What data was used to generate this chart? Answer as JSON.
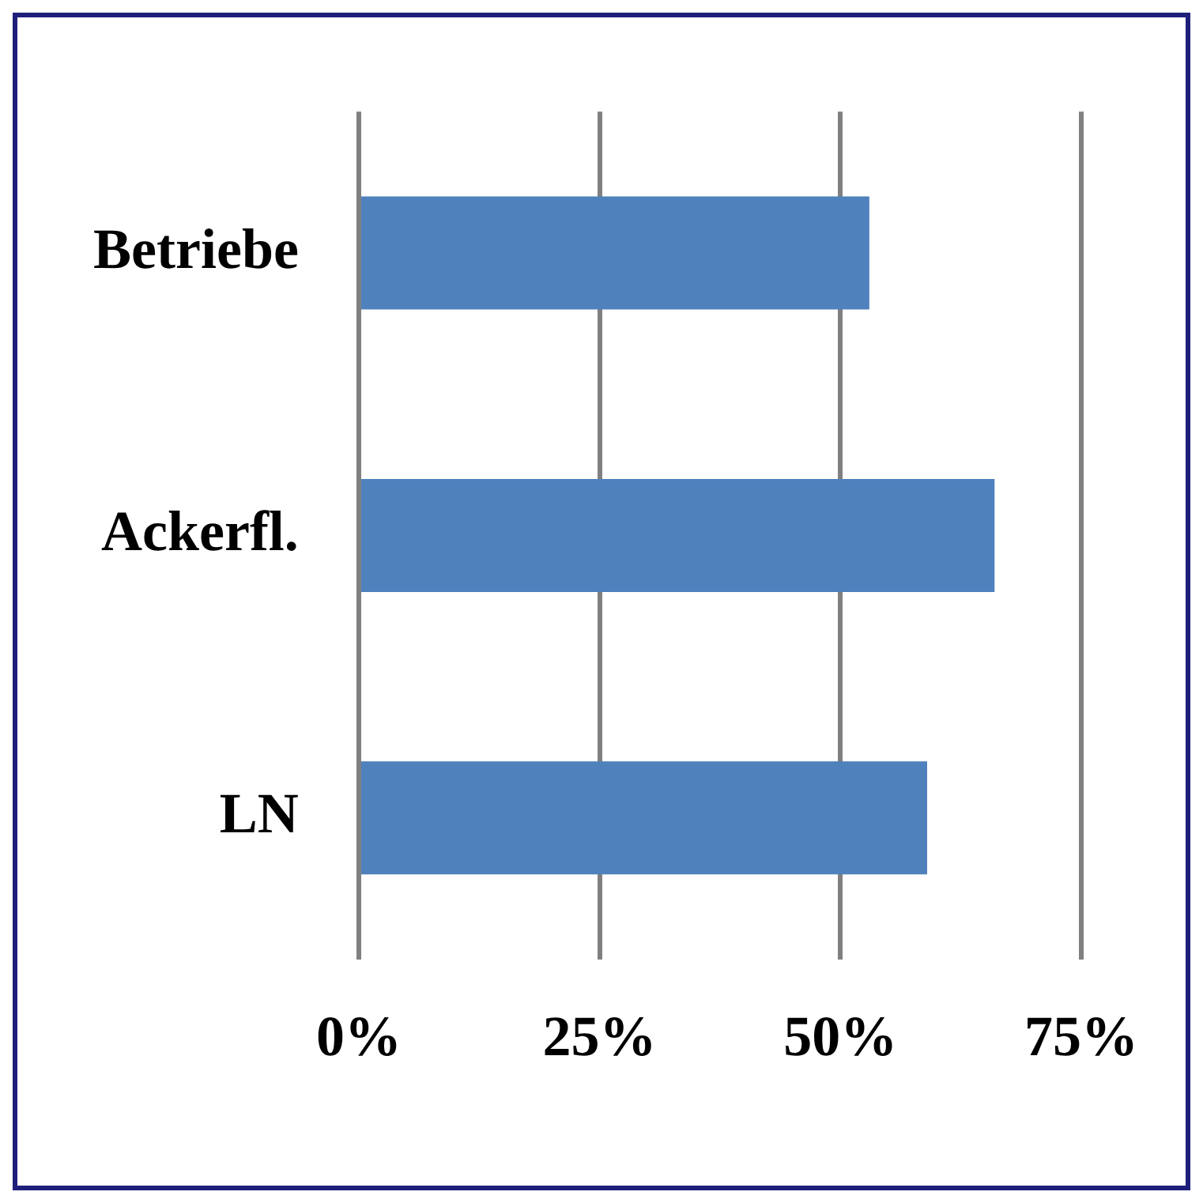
{
  "chart_data": {
    "type": "bar",
    "orientation": "horizontal",
    "categories": [
      "Betriebe",
      "Ackerfl.",
      "LN"
    ],
    "values": [
      53,
      66,
      59
    ],
    "color": "#4f81bd",
    "xlim": [
      0,
      75
    ],
    "xticks": [
      {
        "value": 0,
        "label": "0%"
      },
      {
        "value": 25,
        "label": "25%"
      },
      {
        "value": 50,
        "label": "50%"
      },
      {
        "value": 75,
        "label": "75%"
      }
    ],
    "grid": "x"
  }
}
